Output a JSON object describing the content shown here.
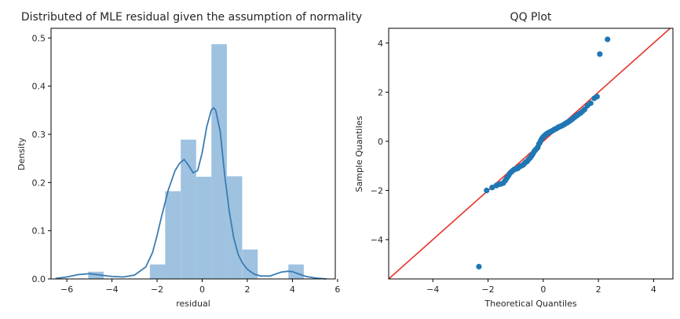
{
  "chart_data": [
    {
      "type": "histogram",
      "title": "Distributed of MLE residual given the assumption of normality",
      "xlabel": "residual",
      "ylabel": "Density",
      "xlim": [
        -6.7,
        5.9
      ],
      "ylim": [
        0,
        0.52
      ],
      "xticks": [
        -6,
        -4,
        -2,
        0,
        2,
        4,
        6
      ],
      "yticks": [
        0.0,
        0.1,
        0.2,
        0.3,
        0.4,
        0.5
      ],
      "bin_width": 0.683,
      "bins": [
        {
          "x0": -5.05,
          "density": 0.015
        },
        {
          "x0": -4.37,
          "density": 0.0
        },
        {
          "x0": -3.68,
          "density": 0.0
        },
        {
          "x0": -3.0,
          "density": 0.0
        },
        {
          "x0": -2.32,
          "density": 0.03
        },
        {
          "x0": -1.64,
          "density": 0.182
        },
        {
          "x0": -0.95,
          "density": 0.289
        },
        {
          "x0": -0.27,
          "density": 0.212
        },
        {
          "x0": 0.41,
          "density": 0.487
        },
        {
          "x0": 1.09,
          "density": 0.213
        },
        {
          "x0": 1.78,
          "density": 0.061
        },
        {
          "x0": 2.46,
          "density": 0.0
        },
        {
          "x0": 3.14,
          "density": 0.0
        },
        {
          "x0": 3.82,
          "density": 0.03
        }
      ],
      "kde": {
        "x": [
          -6.5,
          -6.0,
          -5.5,
          -5.0,
          -4.5,
          -4.0,
          -3.5,
          -3.0,
          -2.5,
          -2.2,
          -2.0,
          -1.8,
          -1.5,
          -1.2,
          -1.0,
          -0.8,
          -0.6,
          -0.4,
          -0.2,
          0.0,
          0.2,
          0.4,
          0.5,
          0.6,
          0.8,
          1.0,
          1.2,
          1.4,
          1.6,
          1.8,
          2.0,
          2.3,
          2.6,
          3.0,
          3.5,
          3.8,
          4.0,
          4.3,
          4.6,
          5.0,
          5.5
        ],
        "y": [
          0.001,
          0.004,
          0.009,
          0.011,
          0.008,
          0.005,
          0.004,
          0.008,
          0.025,
          0.055,
          0.09,
          0.13,
          0.185,
          0.225,
          0.24,
          0.248,
          0.235,
          0.22,
          0.225,
          0.262,
          0.315,
          0.35,
          0.355,
          0.35,
          0.305,
          0.215,
          0.14,
          0.085,
          0.05,
          0.032,
          0.02,
          0.01,
          0.006,
          0.006,
          0.014,
          0.016,
          0.015,
          0.01,
          0.005,
          0.002,
          0.0
        ]
      },
      "colors": {
        "bars": "#9ec2e0",
        "kde": "#3a7cb2"
      }
    },
    {
      "type": "scatter",
      "title": "QQ Plot",
      "xlabel": "Theoretical Quantiles",
      "ylabel": "Sample Quantiles",
      "xlim": [
        -5.6,
        4.7
      ],
      "ylim": [
        -5.6,
        4.6
      ],
      "xticks": [
        -4,
        -2,
        0,
        2,
        4
      ],
      "yticks": [
        -4,
        -2,
        0,
        2,
        4
      ],
      "reference_line": {
        "from": [
          -5.6,
          -5.6
        ],
        "to": [
          4.7,
          4.7
        ],
        "color": "#e8312a"
      },
      "point_color": "#1f77b4",
      "points": [
        [
          -2.33,
          -5.1
        ],
        [
          -2.05,
          -2.0
        ],
        [
          -1.85,
          -1.88
        ],
        [
          -1.7,
          -1.8
        ],
        [
          -1.6,
          -1.75
        ],
        [
          -1.52,
          -1.73
        ],
        [
          -1.45,
          -1.7
        ],
        [
          -1.38,
          -1.6
        ],
        [
          -1.32,
          -1.5
        ],
        [
          -1.26,
          -1.4
        ],
        [
          -1.21,
          -1.3
        ],
        [
          -1.16,
          -1.25
        ],
        [
          -1.11,
          -1.2
        ],
        [
          -1.06,
          -1.15
        ],
        [
          -1.01,
          -1.13
        ],
        [
          -0.97,
          -1.12
        ],
        [
          -0.92,
          -1.1
        ],
        [
          -0.88,
          -1.05
        ],
        [
          -0.84,
          -1.02
        ],
        [
          -0.8,
          -1.0
        ],
        [
          -0.76,
          -0.98
        ],
        [
          -0.72,
          -0.95
        ],
        [
          -0.68,
          -0.9
        ],
        [
          -0.64,
          -0.85
        ],
        [
          -0.6,
          -0.83
        ],
        [
          -0.56,
          -0.78
        ],
        [
          -0.52,
          -0.72
        ],
        [
          -0.48,
          -0.68
        ],
        [
          -0.44,
          -0.62
        ],
        [
          -0.4,
          -0.55
        ],
        [
          -0.36,
          -0.48
        ],
        [
          -0.32,
          -0.4
        ],
        [
          -0.28,
          -0.35
        ],
        [
          -0.24,
          -0.3
        ],
        [
          -0.2,
          -0.25
        ],
        [
          -0.16,
          -0.12
        ],
        [
          -0.12,
          -0.05
        ],
        [
          -0.08,
          0.05
        ],
        [
          -0.04,
          0.12
        ],
        [
          0.0,
          0.18
        ],
        [
          0.04,
          0.22
        ],
        [
          0.08,
          0.26
        ],
        [
          0.12,
          0.3
        ],
        [
          0.16,
          0.33
        ],
        [
          0.2,
          0.35
        ],
        [
          0.24,
          0.38
        ],
        [
          0.28,
          0.4
        ],
        [
          0.32,
          0.42
        ],
        [
          0.36,
          0.45
        ],
        [
          0.4,
          0.48
        ],
        [
          0.44,
          0.5
        ],
        [
          0.48,
          0.52
        ],
        [
          0.52,
          0.55
        ],
        [
          0.56,
          0.58
        ],
        [
          0.6,
          0.6
        ],
        [
          0.65,
          0.62
        ],
        [
          0.7,
          0.65
        ],
        [
          0.75,
          0.68
        ],
        [
          0.8,
          0.72
        ],
        [
          0.85,
          0.75
        ],
        [
          0.9,
          0.78
        ],
        [
          0.95,
          0.82
        ],
        [
          1.0,
          0.86
        ],
        [
          1.05,
          0.9
        ],
        [
          1.1,
          0.95
        ],
        [
          1.16,
          1.0
        ],
        [
          1.22,
          1.05
        ],
        [
          1.28,
          1.1
        ],
        [
          1.35,
          1.15
        ],
        [
          1.42,
          1.22
        ],
        [
          1.5,
          1.3
        ],
        [
          1.6,
          1.45
        ],
        [
          1.72,
          1.55
        ],
        [
          1.85,
          1.75
        ],
        [
          1.95,
          1.82
        ],
        [
          2.05,
          3.55
        ],
        [
          2.33,
          4.15
        ]
      ]
    }
  ]
}
